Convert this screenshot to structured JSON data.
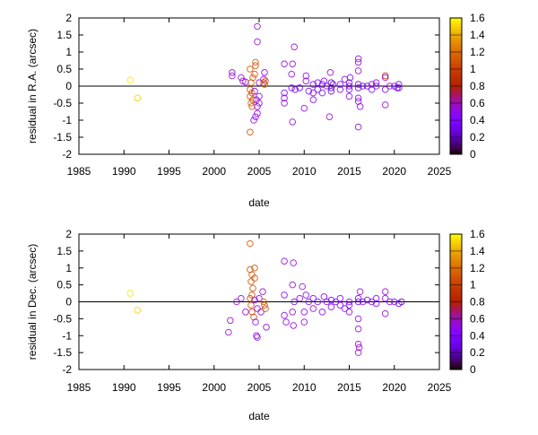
{
  "chart_data": [
    {
      "type": "scatter",
      "xlabel": "date",
      "ylabel": "residual in R.A. (arcsec)",
      "xlim": [
        1985,
        2025
      ],
      "ylim": [
        -2,
        2
      ],
      "xticks": [
        "1985",
        "1990",
        "1995",
        "2000",
        "2005",
        "2010",
        "2015",
        "2020",
        "2025"
      ],
      "yticks": [
        "-2",
        "-1.5",
        "-1",
        "-0.5",
        "0",
        "0.5",
        "1",
        "1.5",
        "2"
      ],
      "zero_line": true,
      "marker": "open-circle",
      "colorbar": {
        "range": [
          0,
          1.6
        ],
        "ticks": [
          "0",
          "0.2",
          "0.4",
          "0.6",
          "0.8",
          "1",
          "1.2",
          "1.4",
          "1.6"
        ],
        "palette": "black-purple-red-yellow",
        "position": "right"
      },
      "points": [
        [
          1990.7,
          0.18,
          1.55
        ],
        [
          1991.5,
          -0.35,
          1.5
        ],
        [
          2002.0,
          0.4,
          0.55
        ],
        [
          2002.0,
          0.3,
          0.55
        ],
        [
          2003.0,
          0.25,
          0.55
        ],
        [
          2003.2,
          0.15,
          0.55
        ],
        [
          2003.5,
          0.12,
          0.5
        ],
        [
          2004.0,
          0.5,
          1.1
        ],
        [
          2004.1,
          0.1,
          1.1
        ],
        [
          2004.0,
          -0.1,
          1.1
        ],
        [
          2004.0,
          -0.3,
          1.1
        ],
        [
          2004.1,
          -0.5,
          1.1
        ],
        [
          2004.2,
          -0.6,
          1.1
        ],
        [
          2004.0,
          -1.35,
          1.1
        ],
        [
          2004.3,
          0.25,
          1.1
        ],
        [
          2004.5,
          0.35,
          1.1
        ],
        [
          2004.6,
          0.7,
          1.1
        ],
        [
          2004.6,
          0.6,
          1.1
        ],
        [
          2004.2,
          -0.2,
          1.1
        ],
        [
          2004.3,
          -0.4,
          1.05
        ],
        [
          2004.8,
          1.75,
          0.55
        ],
        [
          2004.8,
          1.3,
          0.55
        ],
        [
          2004.5,
          -0.15,
          0.5
        ],
        [
          2004.7,
          -0.4,
          0.5
        ],
        [
          2004.8,
          -0.6,
          0.5
        ],
        [
          2004.6,
          -0.9,
          0.5
        ],
        [
          2004.8,
          -0.8,
          0.5
        ],
        [
          2005.0,
          -0.3,
          0.5
        ],
        [
          2005.0,
          0.1,
          0.5
        ],
        [
          2005.5,
          0.2,
          0.5
        ],
        [
          2005.6,
          0.4,
          0.55
        ],
        [
          2005.0,
          -0.5,
          0.5
        ],
        [
          2004.4,
          -1.0,
          0.5
        ],
        [
          2005.5,
          0.1,
          1.1
        ],
        [
          2005.6,
          0.05,
          1.1
        ],
        [
          2005.7,
          0.15,
          1.05
        ],
        [
          2007.8,
          0.65,
          0.55
        ],
        [
          2008.7,
          0.65,
          0.55
        ],
        [
          2007.8,
          -0.2,
          0.35
        ],
        [
          2007.8,
          -0.35,
          0.5
        ],
        [
          2007.8,
          -0.5,
          0.5
        ],
        [
          2008.6,
          -0.05,
          0.45
        ],
        [
          2008.9,
          1.15,
          0.55
        ],
        [
          2008.7,
          -1.05,
          0.55
        ],
        [
          2008.6,
          0.35,
          0.55
        ],
        [
          2009.0,
          -0.1,
          0.3
        ],
        [
          2009.5,
          -0.05,
          0.3
        ],
        [
          2010.2,
          0.3,
          0.5
        ],
        [
          2010.2,
          0.15,
          0.5
        ],
        [
          2010.0,
          -0.65,
          0.5
        ],
        [
          2010.5,
          -0.15,
          0.45
        ],
        [
          2011.0,
          0.05,
          0.4
        ],
        [
          2011.0,
          -0.2,
          0.5
        ],
        [
          2011.0,
          -0.4,
          0.5
        ],
        [
          2011.5,
          0.1,
          0.5
        ],
        [
          2011.5,
          -0.1,
          0.35
        ],
        [
          2012.0,
          0.05,
          0.4
        ],
        [
          2012.0,
          -0.2,
          0.45
        ],
        [
          2012.2,
          0.15,
          0.5
        ],
        [
          2012.5,
          0.0,
          0.35
        ],
        [
          2012.9,
          0.4,
          0.55
        ],
        [
          2012.8,
          -0.9,
          0.55
        ],
        [
          2013.0,
          0.1,
          0.2
        ],
        [
          2013.0,
          -0.05,
          0.2
        ],
        [
          2013.0,
          -0.15,
          0.25
        ],
        [
          2013.2,
          0.05,
          0.3
        ],
        [
          2014.0,
          0.05,
          0.45
        ],
        [
          2014.0,
          -0.1,
          0.45
        ],
        [
          2014.5,
          0.2,
          0.5
        ],
        [
          2015.0,
          0.0,
          0.4
        ],
        [
          2015.0,
          0.1,
          0.4
        ],
        [
          2015.0,
          -0.1,
          0.4
        ],
        [
          2015.0,
          -0.3,
          0.5
        ],
        [
          2015.1,
          0.25,
          0.45
        ],
        [
          2016.0,
          0.05,
          0.3
        ],
        [
          2016.0,
          -0.05,
          0.3
        ],
        [
          2016.0,
          0.8,
          0.55
        ],
        [
          2016.0,
          0.7,
          0.55
        ],
        [
          2016.0,
          0.45,
          0.55
        ],
        [
          2016.0,
          -0.35,
          0.55
        ],
        [
          2016.0,
          -0.45,
          0.5
        ],
        [
          2016.2,
          -0.6,
          0.5
        ],
        [
          2016.0,
          -1.2,
          0.55
        ],
        [
          2016.5,
          0.0,
          0.4
        ],
        [
          2017.0,
          0.0,
          0.4
        ],
        [
          2017.5,
          0.05,
          0.45
        ],
        [
          2017.5,
          -0.1,
          0.45
        ],
        [
          2018.0,
          0.0,
          0.45
        ],
        [
          2018.0,
          0.1,
          0.45
        ],
        [
          2019.0,
          0.3,
          0.9
        ],
        [
          2019.0,
          0.25,
          0.55
        ],
        [
          2019.0,
          -0.55,
          0.55
        ],
        [
          2019.0,
          -0.1,
          0.5
        ],
        [
          2019.5,
          0.0,
          0.45
        ],
        [
          2020.0,
          0.0,
          0.45
        ],
        [
          2020.3,
          -0.05,
          0.4
        ],
        [
          2020.5,
          0.05,
          0.3
        ],
        [
          2020.5,
          -0.05,
          0.25
        ]
      ]
    },
    {
      "type": "scatter",
      "xlabel": "date",
      "ylabel": "residual in Dec. (arcsec)",
      "xlim": [
        1985,
        2025
      ],
      "ylim": [
        -2,
        2
      ],
      "xticks": [
        "1985",
        "1990",
        "1995",
        "2000",
        "2005",
        "2010",
        "2015",
        "2020",
        "2025"
      ],
      "yticks": [
        "-2",
        "-1.5",
        "-1",
        "-0.5",
        "0",
        "0.5",
        "1",
        "1.5",
        "2"
      ],
      "zero_line": true,
      "marker": "open-circle",
      "colorbar": {
        "range": [
          0,
          1.6
        ],
        "ticks": [
          "0",
          "0.2",
          "0.4",
          "0.6",
          "0.8",
          "1",
          "1.2",
          "1.4",
          "1.6"
        ],
        "palette": "black-purple-red-yellow",
        "position": "right"
      },
      "points": [
        [
          1990.7,
          0.25,
          1.55
        ],
        [
          1991.5,
          -0.25,
          1.5
        ],
        [
          2001.8,
          -0.55,
          0.55
        ],
        [
          2001.6,
          -0.9,
          0.55
        ],
        [
          2002.5,
          0.0,
          0.55
        ],
        [
          2003.0,
          0.1,
          0.55
        ],
        [
          2003.5,
          -0.3,
          0.5
        ],
        [
          2004.0,
          1.72,
          1.1
        ],
        [
          2004.0,
          0.95,
          1.1
        ],
        [
          2004.2,
          0.8,
          1.1
        ],
        [
          2004.1,
          0.6,
          1.1
        ],
        [
          2004.3,
          0.4,
          1.1
        ],
        [
          2004.0,
          0.1,
          1.1
        ],
        [
          2004.1,
          -0.1,
          1.1
        ],
        [
          2004.2,
          -0.3,
          1.1
        ],
        [
          2004.4,
          -0.45,
          1.05
        ],
        [
          2004.5,
          1.0,
          1.1
        ],
        [
          2004.5,
          0.7,
          1.1
        ],
        [
          2004.2,
          0.2,
          1.1
        ],
        [
          2004.7,
          -1.0,
          0.5
        ],
        [
          2004.8,
          -1.05,
          0.5
        ],
        [
          2004.6,
          -0.6,
          0.5
        ],
        [
          2004.8,
          -0.2,
          0.5
        ],
        [
          2005.0,
          0.1,
          0.5
        ],
        [
          2005.2,
          -0.3,
          0.5
        ],
        [
          2005.8,
          -0.75,
          0.55
        ],
        [
          2005.4,
          0.3,
          0.55
        ],
        [
          2004.5,
          0.05,
          0.5
        ],
        [
          2005.5,
          0.0,
          1.1
        ],
        [
          2005.6,
          -0.1,
          1.1
        ],
        [
          2005.7,
          -0.2,
          1.05
        ],
        [
          2007.8,
          1.2,
          0.55
        ],
        [
          2008.8,
          1.15,
          0.55
        ],
        [
          2007.8,
          0.2,
          0.5
        ],
        [
          2007.8,
          -0.4,
          0.5
        ],
        [
          2008.0,
          -0.6,
          0.5
        ],
        [
          2008.7,
          0.5,
          0.55
        ],
        [
          2008.7,
          -0.3,
          0.55
        ],
        [
          2008.8,
          -0.7,
          0.55
        ],
        [
          2008.9,
          0.0,
          0.3
        ],
        [
          2009.5,
          0.1,
          0.5
        ],
        [
          2009.8,
          0.45,
          0.55
        ],
        [
          2010.0,
          -0.3,
          0.5
        ],
        [
          2010.0,
          -0.6,
          0.5
        ],
        [
          2010.2,
          0.2,
          0.5
        ],
        [
          2010.5,
          0.0,
          0.45
        ],
        [
          2011.0,
          0.1,
          0.45
        ],
        [
          2011.0,
          -0.2,
          0.5
        ],
        [
          2011.5,
          0.0,
          0.4
        ],
        [
          2012.0,
          -0.3,
          0.5
        ],
        [
          2012.2,
          0.15,
          0.45
        ],
        [
          2012.5,
          0.0,
          0.4
        ],
        [
          2013.0,
          0.05,
          0.4
        ],
        [
          2013.0,
          -0.15,
          0.45
        ],
        [
          2013.5,
          0.0,
          0.45
        ],
        [
          2014.0,
          -0.1,
          0.45
        ],
        [
          2014.0,
          0.1,
          0.45
        ],
        [
          2014.5,
          -0.2,
          0.5
        ],
        [
          2015.0,
          0.0,
          0.45
        ],
        [
          2015.0,
          -0.1,
          0.45
        ],
        [
          2015.0,
          -0.3,
          0.5
        ],
        [
          2016.0,
          0.0,
          0.3
        ],
        [
          2016.0,
          0.1,
          0.3
        ],
        [
          2016.0,
          -0.5,
          0.5
        ],
        [
          2016.0,
          -0.8,
          0.55
        ],
        [
          2016.0,
          -1.25,
          0.55
        ],
        [
          2016.1,
          -1.35,
          0.55
        ],
        [
          2016.0,
          -1.5,
          0.55
        ],
        [
          2016.2,
          0.3,
          0.5
        ],
        [
          2016.5,
          0.0,
          0.45
        ],
        [
          2017.0,
          0.05,
          0.45
        ],
        [
          2017.5,
          0.0,
          0.45
        ],
        [
          2018.0,
          -0.05,
          0.45
        ],
        [
          2018.0,
          0.1,
          0.45
        ],
        [
          2019.0,
          0.3,
          0.55
        ],
        [
          2019.0,
          0.1,
          0.5
        ],
        [
          2019.0,
          -0.35,
          0.55
        ],
        [
          2019.5,
          0.0,
          0.45
        ],
        [
          2020.0,
          0.0,
          0.4
        ],
        [
          2020.5,
          -0.05,
          0.3
        ],
        [
          2020.8,
          0.0,
          0.2
        ]
      ]
    }
  ]
}
